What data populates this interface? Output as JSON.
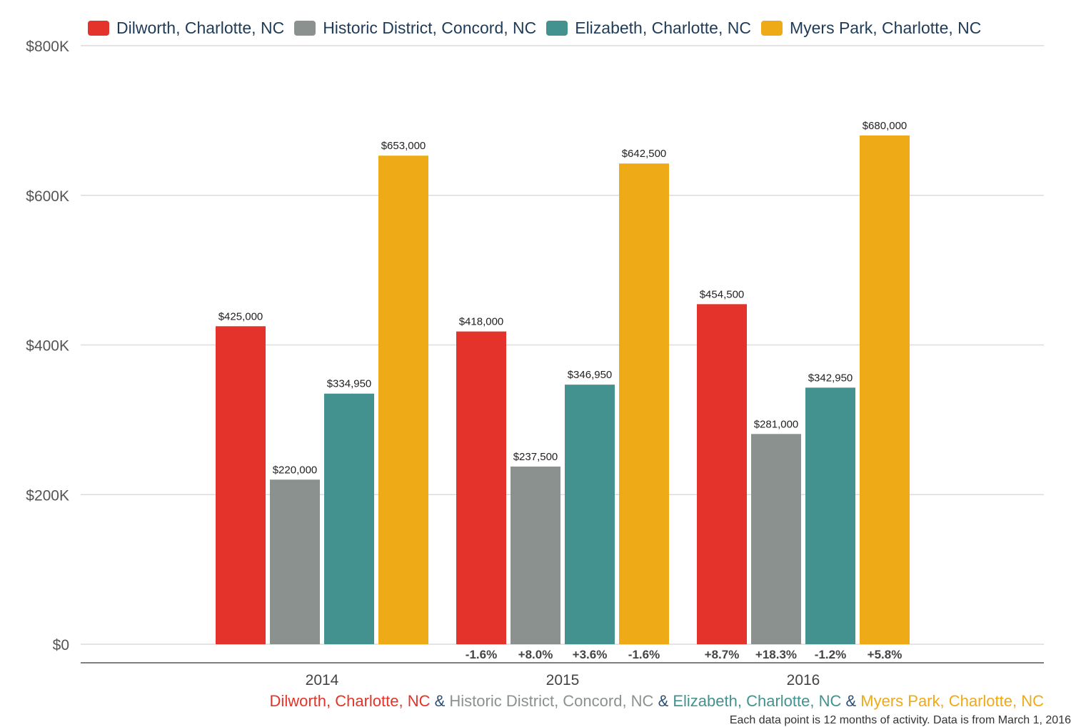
{
  "chart_data": {
    "type": "bar",
    "categories": [
      "2014",
      "2015",
      "2016"
    ],
    "series": [
      {
        "name": "Dilworth, Charlotte, NC",
        "color": "#e3332a",
        "values": [
          425000,
          418000,
          454500
        ],
        "value_labels": [
          "$425,000",
          "$418,000",
          "$454,500"
        ],
        "change_labels": [
          "",
          "-1.6%",
          "+8.7%"
        ]
      },
      {
        "name": "Historic District, Concord, NC",
        "color": "#8a918e",
        "values": [
          220000,
          237500,
          281000
        ],
        "value_labels": [
          "$220,000",
          "$237,500",
          "$281,000"
        ],
        "change_labels": [
          "",
          "+8.0%",
          "+18.3%"
        ]
      },
      {
        "name": "Elizabeth, Charlotte, NC",
        "color": "#439290",
        "values": [
          334950,
          346950,
          342950
        ],
        "value_labels": [
          "$334,950",
          "$346,950",
          "$342,950"
        ],
        "change_labels": [
          "",
          "+3.6%",
          "-1.2%"
        ]
      },
      {
        "name": "Myers Park, Charlotte, NC",
        "color": "#eeaa17",
        "values": [
          653000,
          642500,
          680000
        ],
        "value_labels": [
          "$653,000",
          "$642,500",
          "$680,000"
        ],
        "change_labels": [
          "",
          "-1.6%",
          "+5.8%"
        ]
      }
    ],
    "ylim": [
      0,
      800000
    ],
    "yticks": [
      0,
      200000,
      400000,
      600000,
      800000
    ],
    "ytick_labels": [
      "$0",
      "$200K",
      "$400K",
      "$600K",
      "$800K"
    ],
    "grid": true,
    "legend_position": "top-left"
  },
  "footer": {
    "names": [
      "Dilworth, Charlotte, NC",
      "Historic District, Concord, NC",
      "Elizabeth, Charlotte, NC",
      "Myers Park, Charlotte, NC"
    ],
    "separator": " & ",
    "note": "Each data point is 12 months of activity. Data is from March 1, 2016"
  }
}
